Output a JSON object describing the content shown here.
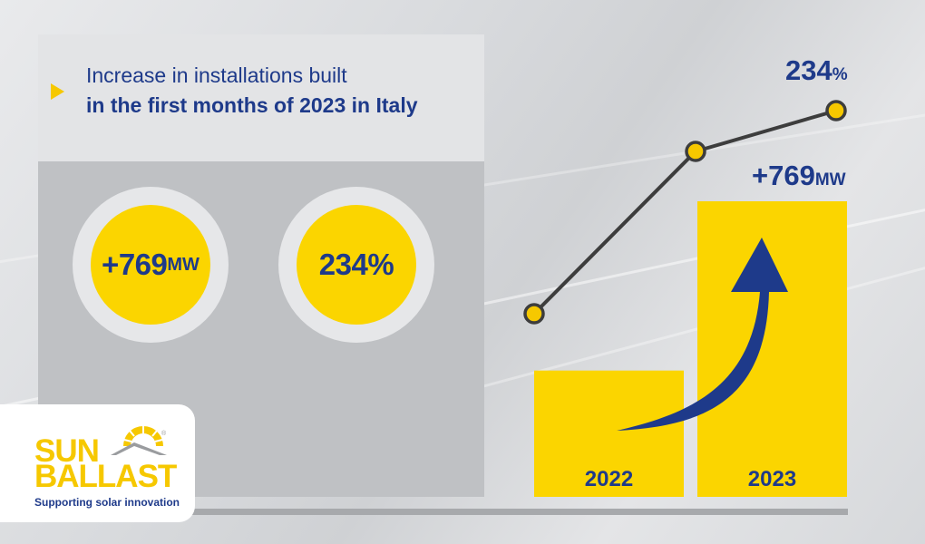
{
  "header": {
    "title_line1": "Increase in installations built",
    "title_line2": "in the first months of 2023 in Italy"
  },
  "stats": {
    "installed": {
      "value": "+769",
      "unit": "MW"
    },
    "percent": {
      "value": "234%"
    }
  },
  "chart_data": {
    "type": "bar",
    "categories": [
      "2022",
      "2023"
    ],
    "series": [
      {
        "values": [
          1,
          2.34
        ]
      }
    ],
    "line": {
      "values": [
        1,
        2.34
      ]
    },
    "annotations": {
      "bar_2023": {
        "value": "+769",
        "unit": "MW"
      },
      "line_2023": {
        "value": "234",
        "unit": "%"
      }
    },
    "colors": {
      "bar": "#fbd500",
      "line": "#3d3d3d",
      "marker": "#f6c800",
      "arrow": "#1e3a8a"
    },
    "grid": false
  },
  "brand": {
    "line1": "SUN",
    "line2": "BALLAST",
    "tagline": "Supporting solar innovation",
    "registered": "®"
  }
}
